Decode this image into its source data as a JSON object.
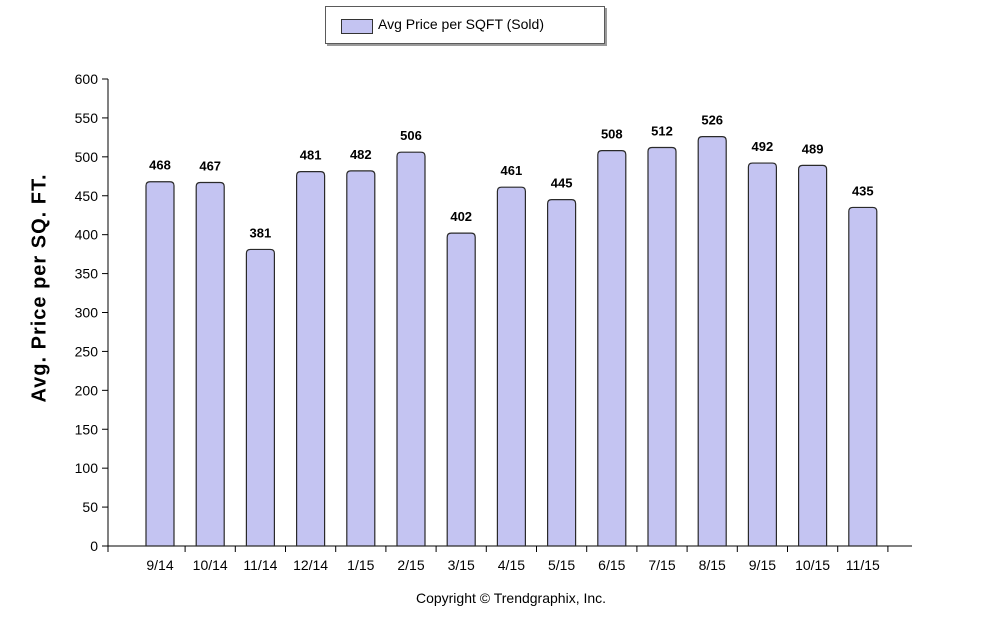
{
  "chart_data": {
    "type": "bar",
    "categories": [
      "9/14",
      "10/14",
      "11/14",
      "12/14",
      "1/15",
      "2/15",
      "3/15",
      "4/15",
      "5/15",
      "6/15",
      "7/15",
      "8/15",
      "9/15",
      "10/15",
      "11/15"
    ],
    "series": [
      {
        "name": "Avg Price per SQFT (Sold)",
        "values": [
          468,
          467,
          381,
          481,
          482,
          506,
          402,
          461,
          445,
          508,
          512,
          526,
          492,
          489,
          435
        ]
      }
    ],
    "title": "",
    "xlabel": "",
    "ylabel": "Avg. Price per SQ. FT.",
    "ylim": [
      0,
      600
    ],
    "yticks": [
      0,
      50,
      100,
      150,
      200,
      250,
      300,
      350,
      400,
      450,
      500,
      550,
      600
    ],
    "grid": false,
    "legend_position": "top-center",
    "bar_color": "#c4c4f2",
    "data_labels": true
  },
  "footer": {
    "copyright": "Copyright © Trendgraphix, Inc."
  }
}
